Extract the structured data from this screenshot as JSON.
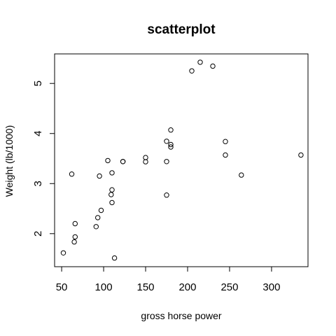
{
  "chart_data": {
    "type": "scatter",
    "title": "scatterplot",
    "xlabel": "gross horse power",
    "ylabel": "Weight (lb/1000)",
    "xlim": [
      41.6,
      343.4
    ],
    "ylim": [
      1.34,
      5.59
    ],
    "xticks": [
      50,
      100,
      150,
      200,
      250,
      300
    ],
    "yticks": [
      2,
      3,
      4,
      5
    ],
    "grid": false,
    "points": [
      {
        "x": 110,
        "y": 2.62
      },
      {
        "x": 110,
        "y": 2.875
      },
      {
        "x": 93,
        "y": 2.32
      },
      {
        "x": 110,
        "y": 3.215
      },
      {
        "x": 175,
        "y": 3.44
      },
      {
        "x": 105,
        "y": 3.46
      },
      {
        "x": 245,
        "y": 3.57
      },
      {
        "x": 62,
        "y": 3.19
      },
      {
        "x": 95,
        "y": 3.15
      },
      {
        "x": 123,
        "y": 3.44
      },
      {
        "x": 123,
        "y": 3.44
      },
      {
        "x": 180,
        "y": 4.07
      },
      {
        "x": 180,
        "y": 3.73
      },
      {
        "x": 180,
        "y": 3.78
      },
      {
        "x": 205,
        "y": 5.25
      },
      {
        "x": 215,
        "y": 5.424
      },
      {
        "x": 230,
        "y": 5.345
      },
      {
        "x": 66,
        "y": 2.2
      },
      {
        "x": 52,
        "y": 1.615
      },
      {
        "x": 65,
        "y": 1.835
      },
      {
        "x": 97,
        "y": 2.465
      },
      {
        "x": 150,
        "y": 3.52
      },
      {
        "x": 150,
        "y": 3.435
      },
      {
        "x": 245,
        "y": 3.84
      },
      {
        "x": 175,
        "y": 3.845
      },
      {
        "x": 66,
        "y": 1.935
      },
      {
        "x": 91,
        "y": 2.14
      },
      {
        "x": 113,
        "y": 1.513
      },
      {
        "x": 264,
        "y": 3.17
      },
      {
        "x": 175,
        "y": 2.77
      },
      {
        "x": 335,
        "y": 3.57
      },
      {
        "x": 109,
        "y": 2.78
      }
    ]
  }
}
